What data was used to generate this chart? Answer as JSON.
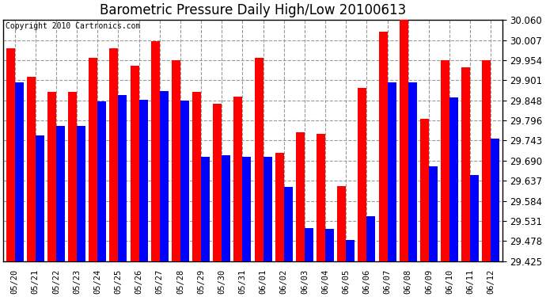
{
  "title": "Barometric Pressure Daily High/Low 20100613",
  "copyright": "Copyright 2010 Cartronics.com",
  "categories": [
    "05/20",
    "05/21",
    "05/22",
    "05/23",
    "05/24",
    "05/25",
    "05/26",
    "05/27",
    "05/28",
    "05/29",
    "05/30",
    "05/31",
    "06/01",
    "06/02",
    "06/03",
    "06/04",
    "06/05",
    "06/06",
    "06/07",
    "06/08",
    "06/09",
    "06/10",
    "06/11",
    "06/12"
  ],
  "highs": [
    29.985,
    29.91,
    29.87,
    29.87,
    29.96,
    29.985,
    29.94,
    30.005,
    29.955,
    29.87,
    29.84,
    29.858,
    29.96,
    29.71,
    29.765,
    29.76,
    29.622,
    29.88,
    30.03,
    30.06,
    29.8,
    29.955,
    29.935,
    29.954
  ],
  "lows": [
    29.895,
    29.755,
    29.78,
    29.78,
    29.845,
    29.862,
    29.85,
    29.872,
    29.848,
    29.7,
    29.703,
    29.7,
    29.7,
    29.62,
    29.512,
    29.51,
    29.48,
    29.543,
    29.895,
    29.895,
    29.675,
    29.857,
    29.652,
    29.748
  ],
  "high_color": "#ff0000",
  "low_color": "#0000ff",
  "bg_color": "#ffffff",
  "plot_bg_color": "#ffffff",
  "grid_color": "#999999",
  "ymin": 29.425,
  "ymax": 30.06,
  "yticks": [
    29.425,
    29.478,
    29.531,
    29.584,
    29.637,
    29.69,
    29.743,
    29.796,
    29.848,
    29.901,
    29.954,
    30.007,
    30.06
  ],
  "title_fontsize": 12,
  "copyright_fontsize": 7
}
